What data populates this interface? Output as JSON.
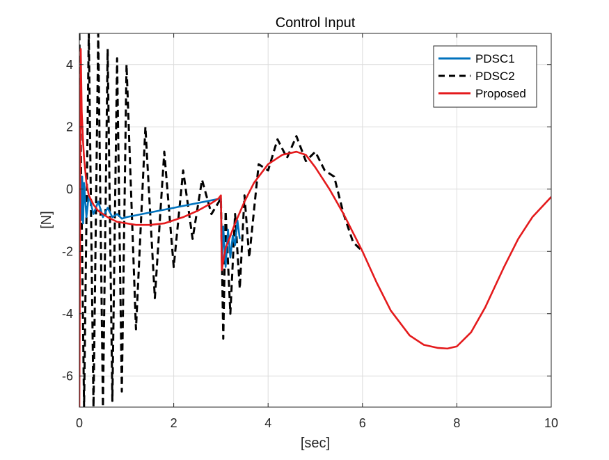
{
  "chart_data": {
    "type": "line",
    "title": "Control Input",
    "xlabel": "[sec]",
    "ylabel": "[N]",
    "xlim": [
      0,
      10
    ],
    "ylim": [
      -7,
      5
    ],
    "xticks": [
      0,
      2,
      4,
      6,
      8,
      10
    ],
    "yticks": [
      -6,
      -4,
      -2,
      0,
      2,
      4
    ],
    "grid": true,
    "legend_position": "top-right",
    "series": [
      {
        "name": "PDSC1",
        "color": "#0072BD",
        "style": "solid",
        "x": [
          0.0,
          0.02,
          0.04,
          0.06,
          0.08,
          0.1,
          0.15,
          0.2,
          0.3,
          0.4,
          0.5,
          0.6,
          0.7,
          0.8,
          0.9,
          1.0,
          3.0,
          3.02,
          3.05,
          3.1,
          3.15,
          3.2,
          3.25,
          3.3,
          3.35,
          3.4
        ],
        "y": [
          -0.5,
          0.6,
          -1.0,
          0.4,
          -1.1,
          0.2,
          -0.9,
          -0.2,
          -0.8,
          -0.4,
          -0.9,
          -0.6,
          -0.9,
          -0.8,
          -0.95,
          -0.9,
          -0.3,
          -2.6,
          -1.2,
          -2.5,
          -1.3,
          -2.2,
          -1.5,
          -1.8,
          -1.0,
          -1.6
        ]
      },
      {
        "name": "PDSC2",
        "color": "#000000",
        "style": "dashed",
        "description_range": [
          0,
          6
        ],
        "x": [
          0.0,
          0.1,
          0.2,
          0.3,
          0.4,
          0.5,
          0.6,
          0.7,
          0.8,
          0.9,
          1.0,
          1.2,
          1.4,
          1.6,
          1.8,
          2.0,
          2.2,
          2.4,
          2.6,
          2.8,
          3.0,
          3.05,
          3.1,
          3.2,
          3.3,
          3.4,
          3.5,
          3.6,
          3.8,
          4.0,
          4.2,
          4.4,
          4.6,
          4.8,
          5.0,
          5.2,
          5.4,
          5.6,
          5.8,
          6.0
        ],
        "y": [
          5.0,
          -7.0,
          5.0,
          -7.0,
          5.0,
          -7.0,
          4.5,
          -6.8,
          4.2,
          -6.5,
          4.0,
          -4.5,
          2.0,
          -3.5,
          1.2,
          -2.5,
          0.6,
          -1.6,
          0.3,
          -0.8,
          -0.3,
          -4.8,
          -0.7,
          -4.0,
          -0.8,
          -3.2,
          -0.2,
          -2.2,
          0.8,
          0.6,
          1.6,
          1.0,
          1.7,
          0.9,
          1.2,
          0.6,
          0.4,
          -0.8,
          -1.7,
          -2.0
        ]
      },
      {
        "name": "Proposed",
        "color": "#E41A1C",
        "style": "solid",
        "x": [
          0.0,
          0.03,
          0.05,
          0.08,
          0.1,
          0.15,
          0.2,
          0.3,
          0.4,
          0.6,
          0.8,
          1.0,
          1.2,
          1.5,
          1.8,
          2.0,
          2.2,
          2.5,
          2.8,
          2.95,
          3.0,
          3.02,
          3.05,
          3.1,
          3.2,
          3.3,
          3.5,
          3.7,
          4.0,
          4.3,
          4.6,
          4.8,
          5.0,
          5.3,
          5.6,
          6.0,
          6.3,
          6.6,
          7.0,
          7.3,
          7.6,
          7.8,
          8.0,
          8.3,
          8.6,
          9.0,
          9.3,
          9.6,
          10.0
        ],
        "y": [
          -7.0,
          4.5,
          2.5,
          1.5,
          1.0,
          0.2,
          -0.2,
          -0.5,
          -0.7,
          -0.9,
          -1.05,
          -1.1,
          -1.15,
          -1.15,
          -1.1,
          -1.0,
          -0.9,
          -0.7,
          -0.45,
          -0.3,
          -0.2,
          -2.6,
          -2.3,
          -1.9,
          -1.5,
          -1.1,
          -0.4,
          0.2,
          0.8,
          1.1,
          1.2,
          1.1,
          0.7,
          0.0,
          -0.8,
          -2.0,
          -3.0,
          -3.9,
          -4.7,
          -5.0,
          -5.1,
          -5.12,
          -5.05,
          -4.6,
          -3.8,
          -2.5,
          -1.6,
          -0.9,
          -0.25
        ]
      }
    ]
  }
}
